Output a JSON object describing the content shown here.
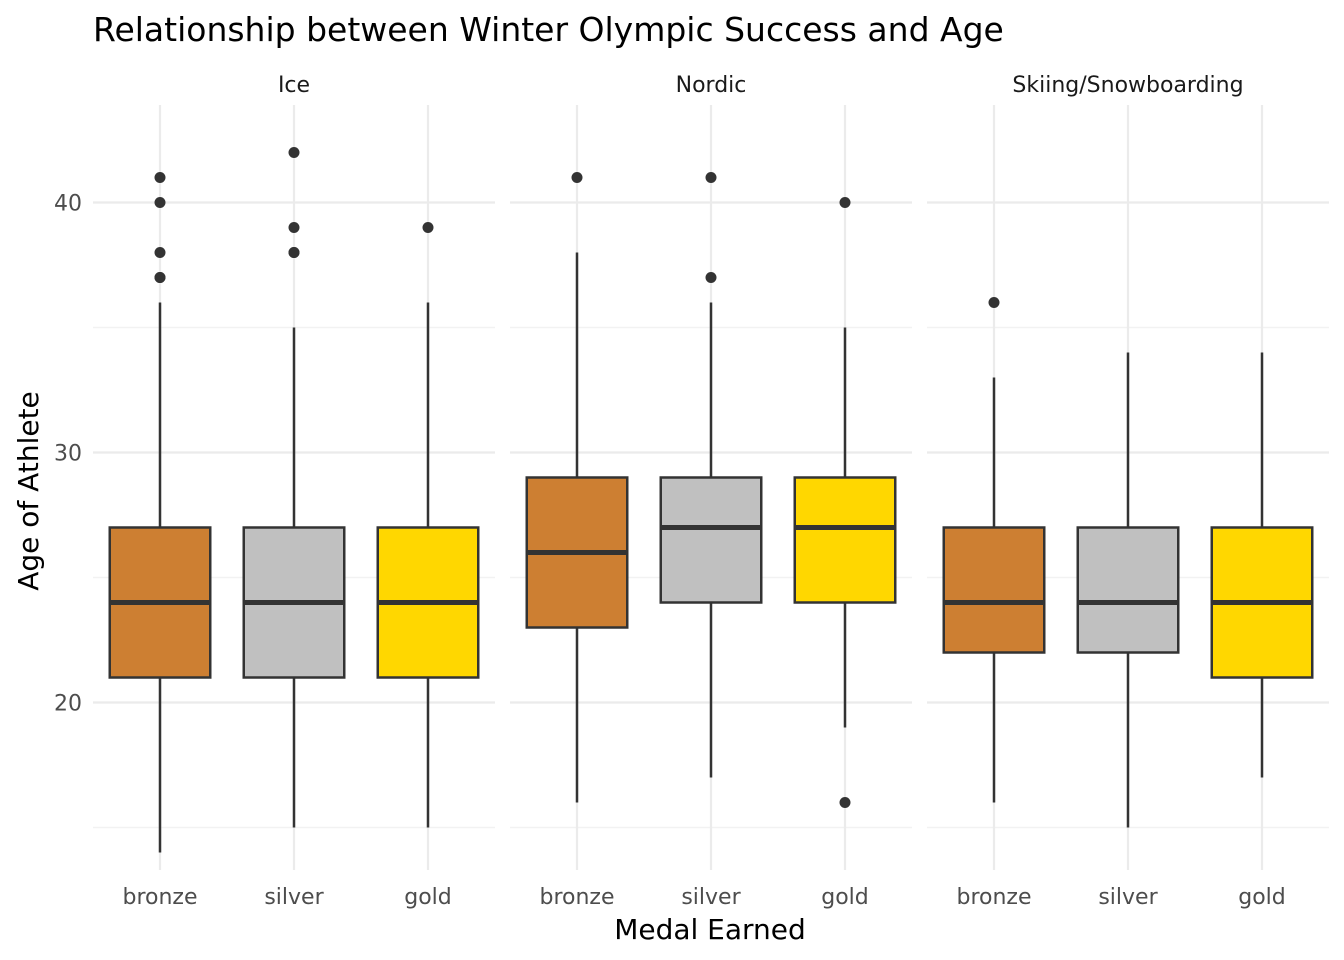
{
  "chart_data": {
    "type": "boxplot",
    "title": "Relationship between Winter Olympic Success and Age",
    "xlabel": "Medal Earned",
    "ylabel": "Age of Athlete",
    "ylim": [
      13.3,
      43.9
    ],
    "yticks": [
      20,
      30,
      40
    ],
    "grid": true,
    "categories": [
      "bronze",
      "silver",
      "gold"
    ],
    "colors": {
      "bronze": "#CD7F32",
      "silver": "#C0C0C0",
      "gold": "#FFD700"
    },
    "outline_color": "#333333",
    "panels": [
      {
        "name": "Ice",
        "boxes": [
          {
            "medal": "bronze",
            "min": 14,
            "q1": 21,
            "median": 24,
            "q3": 27,
            "max": 36,
            "outliers": [
              37,
              37,
              38,
              40,
              41
            ]
          },
          {
            "medal": "silver",
            "min": 15,
            "q1": 21,
            "median": 24,
            "q3": 27,
            "max": 35,
            "outliers": [
              38,
              38,
              39,
              42
            ]
          },
          {
            "medal": "gold",
            "min": 15,
            "q1": 21,
            "median": 24,
            "q3": 27,
            "max": 36,
            "outliers": [
              39
            ]
          }
        ]
      },
      {
        "name": "Nordic",
        "boxes": [
          {
            "medal": "bronze",
            "min": 16,
            "q1": 23,
            "median": 26,
            "q3": 29,
            "max": 38,
            "outliers": [
              41
            ]
          },
          {
            "medal": "silver",
            "min": 17,
            "q1": 24,
            "median": 27,
            "q3": 29,
            "max": 36,
            "outliers": [
              37,
              41
            ]
          },
          {
            "medal": "gold",
            "min": 19,
            "q1": 24,
            "median": 27,
            "q3": 29,
            "max": 35,
            "outliers": [
              16,
              40
            ]
          }
        ]
      },
      {
        "name": "Skiing/Snowboarding",
        "boxes": [
          {
            "medal": "bronze",
            "min": 16,
            "q1": 22,
            "median": 24,
            "q3": 27,
            "max": 33,
            "outliers": [
              36
            ]
          },
          {
            "medal": "silver",
            "min": 15,
            "q1": 22,
            "median": 24,
            "q3": 27,
            "max": 34,
            "outliers": []
          },
          {
            "medal": "gold",
            "min": 17,
            "q1": 21,
            "median": 24,
            "q3": 27,
            "max": 34,
            "outliers": []
          }
        ]
      }
    ]
  }
}
